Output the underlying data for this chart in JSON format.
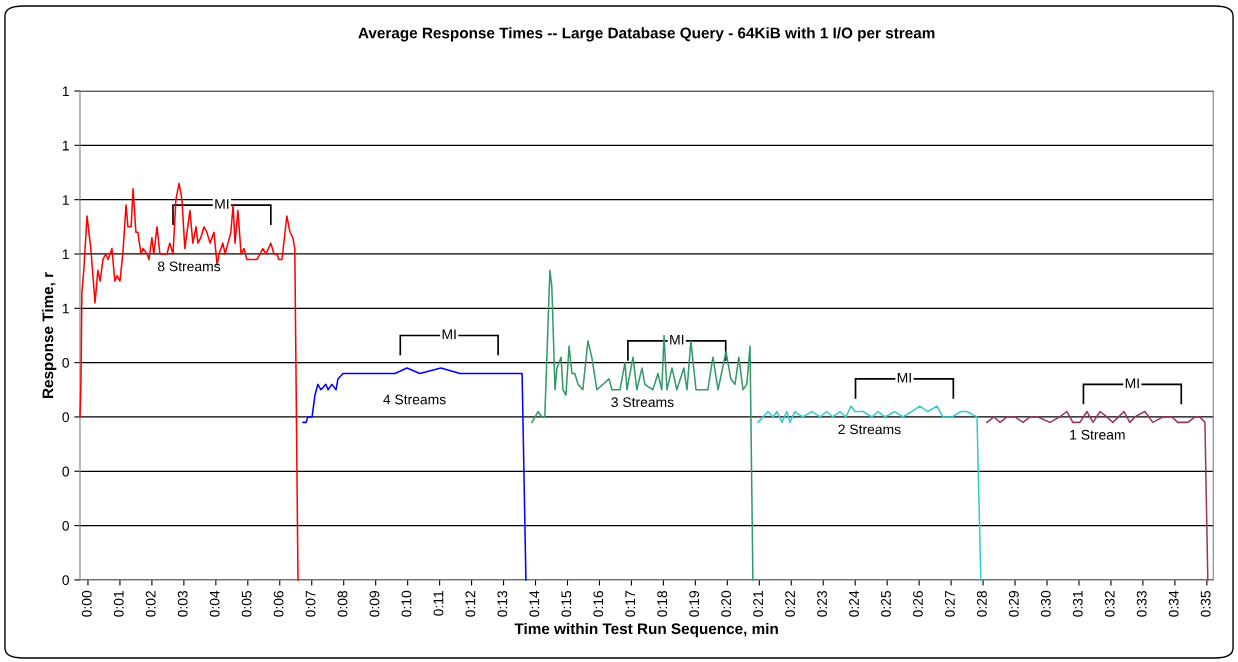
{
  "chart_data": {
    "type": "line",
    "title": "Average Response Times -- Large Database Query - 64KiB with 1 I/O per stream",
    "xlabel": "Time within Test Run Sequence, min",
    "ylabel": "Response Time, r",
    "xlim": [
      -0.25,
      35.2
    ],
    "ylim": [
      0,
      0.9
    ],
    "xticks": [
      {
        "value": 0,
        "label": "0:00"
      },
      {
        "value": 1,
        "label": "0:01"
      },
      {
        "value": 2,
        "label": "0:02"
      },
      {
        "value": 3,
        "label": "0:03"
      },
      {
        "value": 4,
        "label": "0:04"
      },
      {
        "value": 5,
        "label": "0:05"
      },
      {
        "value": 6,
        "label": "0:06"
      },
      {
        "value": 7,
        "label": "0:07"
      },
      {
        "value": 8,
        "label": "0:08"
      },
      {
        "value": 9,
        "label": "0:09"
      },
      {
        "value": 10,
        "label": "0:10"
      },
      {
        "value": 11,
        "label": "0:11"
      },
      {
        "value": 12,
        "label": "0:12"
      },
      {
        "value": 13,
        "label": "0:13"
      },
      {
        "value": 14,
        "label": "0:14"
      },
      {
        "value": 15,
        "label": "0:15"
      },
      {
        "value": 16,
        "label": "0:16"
      },
      {
        "value": 17,
        "label": "0:17"
      },
      {
        "value": 18,
        "label": "0:18"
      },
      {
        "value": 19,
        "label": "0:19"
      },
      {
        "value": 20,
        "label": "0:20"
      },
      {
        "value": 21,
        "label": "0:21"
      },
      {
        "value": 22,
        "label": "0:22"
      },
      {
        "value": 23,
        "label": "0:23"
      },
      {
        "value": 24,
        "label": "0:24"
      },
      {
        "value": 25,
        "label": "0:25"
      },
      {
        "value": 26,
        "label": "0:26"
      },
      {
        "value": 27,
        "label": "0:27"
      },
      {
        "value": 28,
        "label": "0:28"
      },
      {
        "value": 29,
        "label": "0:29"
      },
      {
        "value": 30,
        "label": "0:30"
      },
      {
        "value": 31,
        "label": "0:31"
      },
      {
        "value": 32,
        "label": "0:32"
      },
      {
        "value": 33,
        "label": "0:33"
      },
      {
        "value": 34,
        "label": "0:34"
      },
      {
        "value": 35,
        "label": "0:35"
      }
    ],
    "yticks": [
      {
        "value": 0,
        "label": "0"
      },
      {
        "value": 0.1,
        "label": "0"
      },
      {
        "value": 0.2,
        "label": "0"
      },
      {
        "value": 0.3,
        "label": "0"
      },
      {
        "value": 0.4,
        "label": "0"
      },
      {
        "value": 0.5,
        "label": "1"
      },
      {
        "value": 0.6,
        "label": "1"
      },
      {
        "value": 0.7,
        "label": "1"
      },
      {
        "value": 0.8,
        "label": "1"
      },
      {
        "value": 0.9,
        "label": "1"
      }
    ],
    "grid": "y",
    "legend": false,
    "marker": "none",
    "line_style": "solid",
    "series": [
      {
        "name": "8 Streams",
        "color": "#ff0000",
        "x": [
          -0.25,
          -0.22,
          -0.19,
          -0.13,
          -0.03,
          0.09,
          0.22,
          0.31,
          0.38,
          0.47,
          0.56,
          0.63,
          0.75,
          0.84,
          0.91,
          1.0,
          1.09,
          1.19,
          1.25,
          1.35,
          1.41,
          1.5,
          1.56,
          1.66,
          1.72,
          1.85,
          1.91,
          2.0,
          2.06,
          2.16,
          2.25,
          2.47,
          2.56,
          2.66,
          2.75,
          2.85,
          2.94,
          3.03,
          3.19,
          3.28,
          3.38,
          3.44,
          3.53,
          3.63,
          3.72,
          3.82,
          3.94,
          4.04,
          4.1,
          4.22,
          4.29,
          4.38,
          4.47,
          4.54,
          4.6,
          4.69,
          4.79,
          4.88,
          4.97,
          5.07,
          5.16,
          5.29,
          5.38,
          5.47,
          5.57,
          5.72,
          5.82,
          5.91,
          5.97,
          6.07,
          6.22,
          6.32,
          6.41,
          6.47,
          6.57
        ],
        "values": [
          0.3,
          0.36,
          0.53,
          0.57,
          0.67,
          0.61,
          0.51,
          0.57,
          0.55,
          0.59,
          0.6,
          0.59,
          0.61,
          0.55,
          0.56,
          0.55,
          0.6,
          0.69,
          0.65,
          0.65,
          0.72,
          0.64,
          0.64,
          0.6,
          0.61,
          0.6,
          0.59,
          0.63,
          0.6,
          0.65,
          0.6,
          0.6,
          0.62,
          0.6,
          0.7,
          0.73,
          0.7,
          0.61,
          0.68,
          0.62,
          0.65,
          0.62,
          0.63,
          0.65,
          0.64,
          0.62,
          0.64,
          0.58,
          0.6,
          0.62,
          0.6,
          0.62,
          0.64,
          0.69,
          0.62,
          0.68,
          0.6,
          0.61,
          0.59,
          0.59,
          0.59,
          0.59,
          0.6,
          0.61,
          0.6,
          0.62,
          0.6,
          0.6,
          0.59,
          0.59,
          0.67,
          0.64,
          0.63,
          0.61,
          0.0
        ]
      },
      {
        "name": "4 Streams",
        "color": "#0000ff",
        "x": [
          6.73,
          6.82,
          6.88,
          7.01,
          7.1,
          7.19,
          7.29,
          7.44,
          7.51,
          7.63,
          7.76,
          7.82,
          7.98,
          8.51,
          9.13,
          9.6,
          9.98,
          10.38,
          11.04,
          11.64,
          12.26,
          12.89,
          13.58,
          13.7
        ],
        "values": [
          0.29,
          0.29,
          0.3,
          0.3,
          0.34,
          0.36,
          0.35,
          0.36,
          0.35,
          0.36,
          0.35,
          0.37,
          0.38,
          0.38,
          0.38,
          0.38,
          0.39,
          0.38,
          0.39,
          0.38,
          0.38,
          0.38,
          0.38,
          0.0
        ]
      },
      {
        "name": "3 Streams",
        "color": "#339966",
        "x": [
          13.89,
          14.08,
          14.2,
          14.29,
          14.45,
          14.51,
          14.61,
          14.67,
          14.8,
          14.86,
          14.95,
          15.05,
          15.14,
          15.23,
          15.33,
          15.48,
          15.64,
          15.76,
          15.92,
          16.3,
          16.39,
          16.64,
          16.8,
          16.86,
          17.05,
          17.17,
          17.33,
          17.42,
          17.67,
          17.83,
          17.95,
          18.02,
          18.11,
          18.27,
          18.42,
          18.64,
          18.74,
          18.86,
          19.02,
          19.39,
          19.55,
          19.71,
          19.96,
          20.11,
          20.24,
          20.36,
          20.49,
          20.61,
          20.71,
          20.8
        ],
        "values": [
          0.29,
          0.31,
          0.3,
          0.3,
          0.57,
          0.54,
          0.35,
          0.39,
          0.41,
          0.35,
          0.34,
          0.43,
          0.38,
          0.38,
          0.36,
          0.35,
          0.44,
          0.41,
          0.35,
          0.37,
          0.35,
          0.35,
          0.4,
          0.35,
          0.41,
          0.35,
          0.39,
          0.36,
          0.35,
          0.38,
          0.35,
          0.45,
          0.35,
          0.39,
          0.35,
          0.39,
          0.35,
          0.44,
          0.35,
          0.35,
          0.41,
          0.35,
          0.42,
          0.37,
          0.36,
          0.41,
          0.35,
          0.36,
          0.43,
          0.0
        ]
      },
      {
        "name": "2 Streams",
        "color": "#33cccc",
        "x": [
          20.96,
          21.27,
          21.43,
          21.55,
          21.71,
          21.86,
          21.96,
          22.11,
          22.36,
          22.65,
          22.9,
          23.11,
          23.3,
          23.52,
          23.71,
          23.87,
          23.99,
          24.24,
          24.52,
          24.71,
          24.93,
          25.24,
          25.49,
          25.77,
          26.02,
          26.27,
          26.56,
          26.74,
          27.03,
          27.31,
          27.49,
          27.81,
          27.93
        ],
        "values": [
          0.29,
          0.31,
          0.3,
          0.31,
          0.29,
          0.31,
          0.29,
          0.31,
          0.3,
          0.31,
          0.3,
          0.31,
          0.3,
          0.31,
          0.3,
          0.32,
          0.31,
          0.31,
          0.3,
          0.31,
          0.3,
          0.31,
          0.3,
          0.31,
          0.32,
          0.31,
          0.32,
          0.3,
          0.3,
          0.31,
          0.31,
          0.3,
          0.0
        ]
      },
      {
        "name": "1 Stream",
        "color": "#993366",
        "x": [
          28.12,
          28.34,
          28.53,
          28.75,
          29.0,
          29.25,
          29.47,
          29.72,
          30.09,
          30.4,
          30.62,
          30.81,
          31.03,
          31.25,
          31.44,
          31.66,
          31.87,
          32.06,
          32.41,
          32.59,
          32.75,
          33.06,
          33.31,
          33.63,
          33.91,
          34.09,
          34.41,
          34.63,
          34.78,
          34.94,
          35.03
        ],
        "values": [
          0.29,
          0.3,
          0.29,
          0.3,
          0.3,
          0.29,
          0.3,
          0.3,
          0.29,
          0.3,
          0.31,
          0.29,
          0.29,
          0.31,
          0.29,
          0.31,
          0.3,
          0.29,
          0.31,
          0.29,
          0.3,
          0.31,
          0.29,
          0.3,
          0.3,
          0.29,
          0.29,
          0.3,
          0.3,
          0.29,
          0.0
        ]
      }
    ],
    "annotations": [
      {
        "text": "MI",
        "x": 4.19,
        "y": 0.69
      },
      {
        "text": "MI",
        "x": 11.3,
        "y": 0.45
      },
      {
        "text": "MI",
        "x": 18.42,
        "y": 0.44
      },
      {
        "text": "MI",
        "x": 25.54,
        "y": 0.37
      },
      {
        "text": "MI",
        "x": 32.67,
        "y": 0.36
      }
    ]
  }
}
